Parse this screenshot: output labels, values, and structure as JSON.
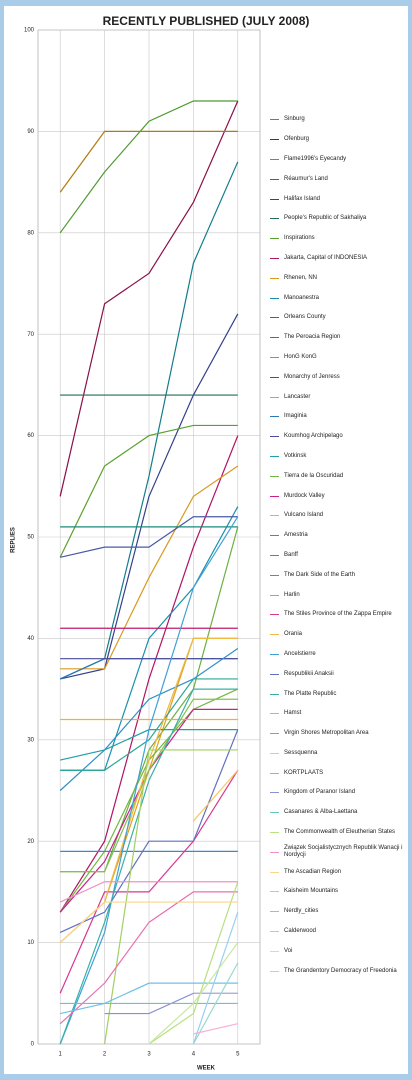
{
  "chart_data": {
    "type": "line",
    "title": "RECENTLY PUBLISHED (JULY 2008)",
    "xlabel": "WEEK",
    "ylabel": "REPLIES",
    "x": [
      1,
      2,
      3,
      4,
      5
    ],
    "xlim": [
      0.5,
      5.5
    ],
    "xticks": [
      1,
      2,
      3,
      4,
      5
    ],
    "ylim": [
      0,
      100
    ],
    "yticks": [
      0,
      10,
      20,
      30,
      40,
      50,
      60,
      70,
      80,
      90,
      100
    ],
    "grid": true,
    "series": [
      {
        "name": "Sinburg",
        "color": "#4e9a2f",
        "values": [
          80,
          86,
          91,
          93,
          93
        ]
      },
      {
        "name": "Ofenburg",
        "color": "#8b1048",
        "values": [
          54,
          73,
          76,
          83,
          93
        ]
      },
      {
        "name": "Flame1996's Eyecandy",
        "color": "#b07a10",
        "values": [
          84,
          90,
          90,
          90,
          90
        ]
      },
      {
        "name": "Réaumur's Land",
        "color": "#137c8a",
        "values": [
          36,
          38,
          56,
          77,
          87
        ]
      },
      {
        "name": "Halifax Island",
        "color": "#33408a",
        "values": [
          36,
          37,
          54,
          64,
          72
        ]
      },
      {
        "name": "People's Republic of Sakhaliya",
        "color": "#1f6d5a",
        "values": [
          64,
          64,
          64,
          64,
          64
        ]
      },
      {
        "name": "Inspirations",
        "color": "#5aa02c",
        "values": [
          48,
          57,
          60,
          61,
          61
        ]
      },
      {
        "name": "Jakarta, Capital of INDONESIA",
        "color": "#b01464",
        "values": [
          13,
          20,
          36,
          49,
          60
        ]
      },
      {
        "name": "Rhenen, NN",
        "color": "#d99a20",
        "values": [
          37,
          37,
          46,
          54,
          57
        ]
      },
      {
        "name": "Manoanestra",
        "color": "#1a8fb0",
        "values": [
          27,
          27,
          40,
          45,
          53
        ]
      },
      {
        "name": "Orleans County",
        "color": "#4a5aa8",
        "values": [
          48,
          49,
          49,
          52,
          52
        ]
      },
      {
        "name": "The Peroacia Region",
        "color": "#1a8a7a",
        "values": [
          51,
          51,
          51,
          51,
          51
        ]
      },
      {
        "name": "HonG KonG",
        "color": "#6ab040",
        "values": [
          17,
          17,
          29,
          35,
          51
        ]
      },
      {
        "name": "Monarchy of Jenress",
        "color": "#c0186e",
        "values": [
          41,
          41,
          41,
          41,
          41
        ]
      },
      {
        "name": "Lancaster",
        "color": "#e0a020",
        "values": [
          10,
          14,
          27,
          40,
          40
        ]
      },
      {
        "name": "Imaginia",
        "color": "#2a7ab8",
        "values": [
          36,
          38,
          38,
          38,
          38
        ]
      },
      {
        "name": "Koumhog Archipelago",
        "color": "#4a4a98",
        "values": [
          38,
          38,
          38,
          38,
          38
        ]
      },
      {
        "name": "Votkinsk",
        "color": "#20a0a8",
        "values": [
          28,
          29,
          31,
          31,
          31
        ]
      },
      {
        "name": "Tierra de la Oscuridad",
        "color": "#70b840",
        "values": [
          13,
          19,
          28,
          33,
          35
        ]
      },
      {
        "name": "Murdock Valley",
        "color": "#c8208a",
        "values": [
          13,
          18,
          27,
          33,
          33
        ]
      },
      {
        "name": "Vulcano Island",
        "color": "#f0b030",
        "values": [
          32,
          32,
          32,
          32,
          32
        ]
      },
      {
        "name": "Amestria",
        "color": "#3090c8",
        "values": [
          25,
          29,
          34,
          36,
          39
        ]
      },
      {
        "name": "Banff",
        "color": "#3a8ad0",
        "values": [
          19,
          19,
          19,
          19,
          19
        ]
      },
      {
        "name": "The Dark Side of the Earth",
        "color": "#28a898",
        "values": [
          27,
          27,
          30,
          36,
          36
        ]
      },
      {
        "name": "Harlin",
        "color": "#88c050",
        "values": [
          17,
          17,
          27,
          34,
          34
        ]
      },
      {
        "name": "The Stiles Province of the Zappa Empire",
        "color": "#d83890",
        "values": [
          5,
          15,
          15,
          20,
          27
        ]
      },
      {
        "name": "Orania",
        "color": "#f0b840",
        "values": [
          10,
          14,
          28,
          40,
          40
        ]
      },
      {
        "name": "Ancelstierre",
        "color": "#40a0d8",
        "values": [
          0,
          11,
          31,
          45,
          52
        ]
      },
      {
        "name": "Respublikii Anaksii",
        "color": "#6070c0",
        "values": [
          11,
          13,
          20,
          20,
          31
        ]
      },
      {
        "name": "The Platte Republic",
        "color": "#38b0a8",
        "values": [
          0,
          12,
          26,
          35,
          35
        ]
      },
      {
        "name": "Hamst",
        "color": "#a0d060",
        "values": [
          null,
          0,
          29,
          29,
          29
        ]
      },
      {
        "name": "Virgin Shores Metropolitan Area",
        "color": "#e870b0",
        "values": [
          2,
          6,
          12,
          15,
          15
        ]
      },
      {
        "name": "Sessquenna",
        "color": "#f8c860",
        "values": [
          null,
          null,
          null,
          22,
          27
        ]
      },
      {
        "name": "KORTPLAATS",
        "color": "#70c0e8",
        "values": [
          3,
          4,
          6,
          6,
          6
        ]
      },
      {
        "name": "Kingdom of Paranor Island",
        "color": "#8890d0",
        "values": [
          null,
          3,
          3,
          5,
          5
        ]
      },
      {
        "name": "Casanares & Alba-Laettana",
        "color": "#68c8c0",
        "values": [
          4,
          4,
          4,
          4,
          4
        ]
      },
      {
        "name": "The Commonwealth of Eleutherian States",
        "color": "#b8e080",
        "values": [
          null,
          null,
          0,
          3,
          16
        ]
      },
      {
        "name": "Związek Socjalistycznych Republik Wanacji i Nordycji",
        "color": "#f090c8",
        "values": [
          14,
          16,
          16,
          16,
          16
        ]
      },
      {
        "name": "The Ascadian Region",
        "color": "#f8d888",
        "values": [
          10,
          14,
          14,
          14,
          14
        ]
      },
      {
        "name": "Kaisheim Mountains",
        "color": "#98d0f0",
        "values": [
          null,
          null,
          null,
          0,
          13
        ]
      },
      {
        "name": "Nerdly_cities",
        "color": "#b0b0e0",
        "values": [
          null,
          null,
          null,
          5,
          5
        ]
      },
      {
        "name": "Calderwood",
        "color": "#98d8d0",
        "values": [
          null,
          null,
          null,
          0,
          8
        ]
      },
      {
        "name": "Voi",
        "color": "#c8e8a0",
        "values": [
          null,
          null,
          0,
          4,
          10
        ]
      },
      {
        "name": "The Grandentory Democracy of Freedonia",
        "color": "#f8b0d8",
        "values": [
          null,
          null,
          null,
          1,
          2
        ]
      }
    ]
  }
}
